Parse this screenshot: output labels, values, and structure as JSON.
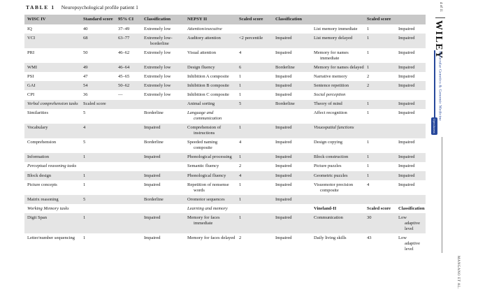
{
  "page": {
    "title_label": "TABLE 1",
    "title_caption": "Neuropsychological profile patient 1"
  },
  "sidebar": {
    "page_number": "4 of 11",
    "publisher": "WILEY",
    "journal": "Molecular Genetics & Genomic Medicine",
    "open_access_label": "Open Access",
    "running_head": "MANGANO ET AL.",
    "journal_color": "#27489b"
  },
  "table": {
    "header": [
      "WISC IV",
      "Standard score",
      "95% CI",
      "Classification",
      "NEPSY II",
      "Scaled score",
      "Classification",
      "",
      "Scaled score",
      ""
    ],
    "rows": [
      [
        "IQ",
        "40",
        "37–49",
        "Extremely low",
        {
          "t": "Attention/executive",
          "i": true
        },
        "",
        "",
        "List memory immediate",
        "1",
        "Impaired"
      ],
      [
        "VCI",
        "68",
        "63–77",
        "Extremely low-borderline",
        "Auditory attention",
        "<2 percentile",
        "Impaired",
        "List memory delayed",
        "1",
        "Impaired"
      ],
      [
        "PRI",
        "50",
        "46–62",
        "Extremely low",
        "Visual attention",
        "4",
        "Impaired",
        "Memory for names immediate",
        "1",
        "Impaired"
      ],
      [
        "WMI",
        "49",
        "46–64",
        "Extremely low",
        "Design fluency",
        "6",
        "Borderline",
        "Memory for names delayed",
        "1",
        "Impaired"
      ],
      [
        "PSI",
        "47",
        "45–65",
        "Extremely low",
        "Inhibition A composite",
        "1",
        "Impaired",
        "Narrative memory",
        "2",
        "Impaired"
      ],
      [
        "GAI",
        "54",
        "50–62",
        "Extremely low",
        "Inhibition B composite",
        "1",
        "Impaired",
        "Sentence repetition",
        "2",
        "Impaired"
      ],
      [
        "CPI",
        "36",
        "—",
        "Extremely low",
        "Inhibition C composite",
        "1",
        "Impaired",
        {
          "t": "Social perception",
          "i": true
        },
        "",
        ""
      ],
      [
        {
          "t": "Verbal comprehension tasks",
          "i": true
        },
        "Scaled score",
        "",
        "",
        "Animal sorting",
        "5",
        "Borderline",
        "Theory of mind",
        "1",
        "Impaired"
      ],
      [
        "Similarities",
        "5",
        "",
        "Borderline",
        {
          "t": "Language and communication",
          "i": true
        },
        "",
        "",
        "Affect recognition",
        "1",
        "Impaired"
      ],
      [
        "Vocabulary",
        "4",
        "",
        "Impaired",
        "Comprehension of instructions",
        "1",
        "Impaired",
        {
          "t": "Visuospatial functions",
          "i": true
        },
        "",
        ""
      ],
      [
        "Comprehension",
        "5",
        "",
        "Borderline",
        "Speeded naming composite",
        "4",
        "Impaired",
        "Design copying",
        "1",
        "Impaired"
      ],
      [
        "Information",
        "1",
        "",
        "Impaired",
        "Phonological processing",
        "1",
        "Impaired",
        "Block construction",
        "1",
        "Impaired"
      ],
      [
        {
          "t": "Perceptual reasoning tasks",
          "i": true
        },
        "",
        "",
        "",
        "Semantic fluency",
        "2",
        "Impaired",
        "Picture puzzles",
        "1",
        "Impaired"
      ],
      [
        "Block design",
        "1",
        "",
        "Impaired",
        "Phonological fluency",
        "4",
        "Impaired",
        "Geometric puzzles",
        "1",
        "Impaired"
      ],
      [
        "Picture concepts",
        "1",
        "",
        "Impaired",
        "Repetition of nonsense words",
        "1",
        "Impaired",
        "Visuomotor precision composite",
        "4",
        "Impaired"
      ],
      [
        "Matrix reasoning",
        "5",
        "",
        "Borderline",
        "Oromotor sequences",
        "1",
        "Impaired",
        "",
        "",
        ""
      ],
      [
        {
          "t": "Working Memory tasks",
          "i": true
        },
        "",
        "",
        "",
        {
          "t": "Learning and memory",
          "i": true
        },
        "",
        "",
        {
          "t": "Vineland-II",
          "b": true
        },
        {
          "t": "Scaled score",
          "b": true
        },
        {
          "t": "Classification",
          "b": true
        }
      ],
      [
        "Digit Span",
        "1",
        "",
        "Impaired",
        "Memory for faces immediate",
        "1",
        "Impaired",
        "Communication",
        "30",
        "Low adaptive level"
      ],
      [
        "Letter/number sequencing",
        "1",
        "",
        "Impaired",
        "Memory for faces delayed",
        "2",
        "Impaired",
        "Daily living skills",
        "43",
        "Low adaptive level"
      ]
    ]
  }
}
